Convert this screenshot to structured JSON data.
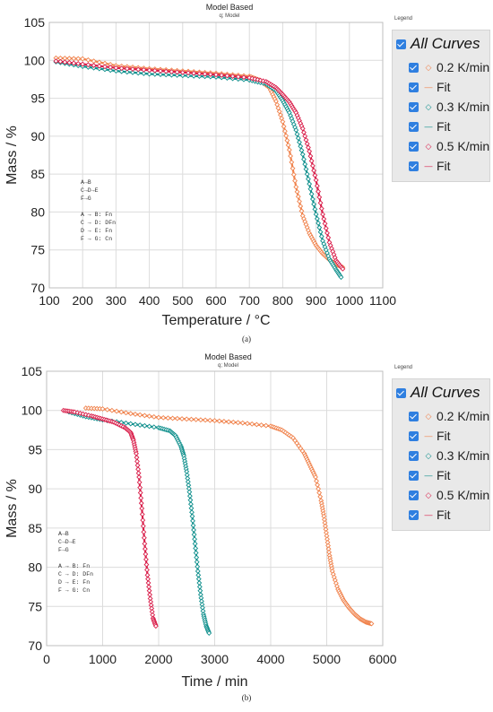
{
  "colors": {
    "s02": "#f0834d",
    "s03": "#0f8f8c",
    "s05": "#d91e4a",
    "check": "#2f7fe0"
  },
  "chart_data": [
    {
      "type": "scatter",
      "title": "Model Based",
      "subtitle": "q; Model",
      "xlabel": "Temperature / °C",
      "ylabel": "Mass / %",
      "xlim": [
        100,
        1100
      ],
      "ylim": [
        70,
        105
      ],
      "xticks": [
        "100",
        "200",
        "300",
        "400",
        "500",
        "600",
        "700",
        "800",
        "900",
        "1000",
        "1100"
      ],
      "yticks": [
        "70",
        "75",
        "80",
        "85",
        "90",
        "95",
        "100",
        "105"
      ],
      "grid": true,
      "caption": "(a)",
      "legend": {
        "title": "Legend",
        "all": "All Curves",
        "items": [
          "0.2 K/min",
          "Fit",
          "0.3 K/min",
          "Fit",
          "0.5 K/min",
          "Fit"
        ]
      },
      "model_text": [
        "A→B",
        "C→D→E",
        "F→G",
        "",
        "A → B: Fn",
        "C → D: DFn",
        "D → E: Fn",
        "F → G: Cn"
      ],
      "series": [
        {
          "name": "0.2 K/min",
          "color_key": "s02",
          "x": [
            120,
            200,
            300,
            400,
            500,
            600,
            700,
            730,
            760,
            780,
            800,
            820,
            840,
            860,
            880,
            900,
            920,
            940,
            960,
            980
          ],
          "y": [
            100.3,
            100.2,
            99.3,
            98.9,
            98.6,
            98.3,
            97.9,
            97.4,
            96.4,
            94.6,
            91.9,
            88.2,
            83.3,
            79.5,
            77.2,
            75.6,
            74.5,
            73.7,
            73.1,
            72.7
          ]
        },
        {
          "name": "0.3 K/min",
          "color_key": "s03",
          "x": [
            120,
            200,
            300,
            400,
            500,
            600,
            700,
            750,
            780,
            800,
            820,
            840,
            860,
            880,
            900,
            920,
            940,
            960,
            975
          ],
          "y": [
            99.8,
            99.2,
            98.6,
            98.2,
            98.0,
            97.8,
            97.4,
            96.9,
            96.0,
            94.7,
            93.1,
            90.8,
            87.6,
            83.7,
            79.7,
            76.2,
            73.8,
            72.4,
            71.4
          ]
        },
        {
          "name": "0.5 K/min",
          "color_key": "s05",
          "x": [
            120,
            200,
            300,
            400,
            500,
            600,
            700,
            750,
            780,
            800,
            820,
            840,
            860,
            880,
            900,
            920,
            940,
            960,
            980
          ],
          "y": [
            99.9,
            99.5,
            99.0,
            98.7,
            98.4,
            98.1,
            97.7,
            97.2,
            96.4,
            95.5,
            94.5,
            93.1,
            91.0,
            88.0,
            84.2,
            79.7,
            76.0,
            73.6,
            72.5
          ]
        }
      ]
    },
    {
      "type": "scatter",
      "title": "Model Based",
      "subtitle": "q; Model",
      "xlabel": "Time / min",
      "ylabel": "Mass / %",
      "xlim": [
        0,
        6000
      ],
      "ylim": [
        70,
        105
      ],
      "xticks": [
        "0",
        "1000",
        "2000",
        "3000",
        "4000",
        "5000",
        "6000"
      ],
      "yticks": [
        "70",
        "75",
        "80",
        "85",
        "90",
        "95",
        "100",
        "105"
      ],
      "grid": true,
      "caption": "(b)",
      "legend": {
        "title": "Legend",
        "all": "All Curves",
        "items": [
          "0.2 K/min",
          "Fit",
          "0.3 K/min",
          "Fit",
          "0.5 K/min",
          "Fit"
        ]
      },
      "model_text": [
        "A→B",
        "C→D→E",
        "F→G",
        "",
        "A → B: Fn",
        "C → D: DFn",
        "D → E: Fn",
        "F → G: Cn"
      ],
      "series": [
        {
          "name": "0.2 K/min",
          "color_key": "s02",
          "x": [
            700,
            1000,
            1500,
            2000,
            2500,
            3000,
            3500,
            4000,
            4200,
            4400,
            4600,
            4700,
            4800,
            4900,
            4950,
            5000,
            5050,
            5100,
            5200,
            5300,
            5400,
            5500,
            5600,
            5700,
            5800
          ],
          "y": [
            100.3,
            100.2,
            99.6,
            99.1,
            98.9,
            98.7,
            98.4,
            98.0,
            97.5,
            96.5,
            94.5,
            93.0,
            91.5,
            88.5,
            86.5,
            84.0,
            81.5,
            79.5,
            77.2,
            75.8,
            74.8,
            74.0,
            73.4,
            73.0,
            72.8
          ]
        },
        {
          "name": "0.3 K/min",
          "color_key": "s03",
          "x": [
            400,
            700,
            1000,
            1500,
            2000,
            2200,
            2300,
            2400,
            2450,
            2500,
            2550,
            2600,
            2650,
            2700,
            2750,
            2800,
            2850,
            2900
          ],
          "y": [
            99.8,
            99.2,
            98.8,
            98.3,
            97.8,
            97.4,
            96.8,
            95.4,
            94.2,
            92.2,
            89.6,
            86.5,
            83.0,
            79.5,
            76.5,
            74.0,
            72.5,
            71.6
          ]
        },
        {
          "name": "0.5 K/min",
          "color_key": "s05",
          "x": [
            300,
            500,
            800,
            1000,
            1200,
            1400,
            1500,
            1550,
            1600,
            1650,
            1700,
            1750,
            1800,
            1850,
            1900,
            1950
          ],
          "y": [
            100.0,
            99.8,
            99.3,
            98.9,
            98.5,
            97.8,
            97.2,
            96.2,
            94.5,
            91.5,
            87.5,
            83.0,
            79.0,
            76.0,
            73.5,
            72.5
          ]
        }
      ]
    }
  ]
}
